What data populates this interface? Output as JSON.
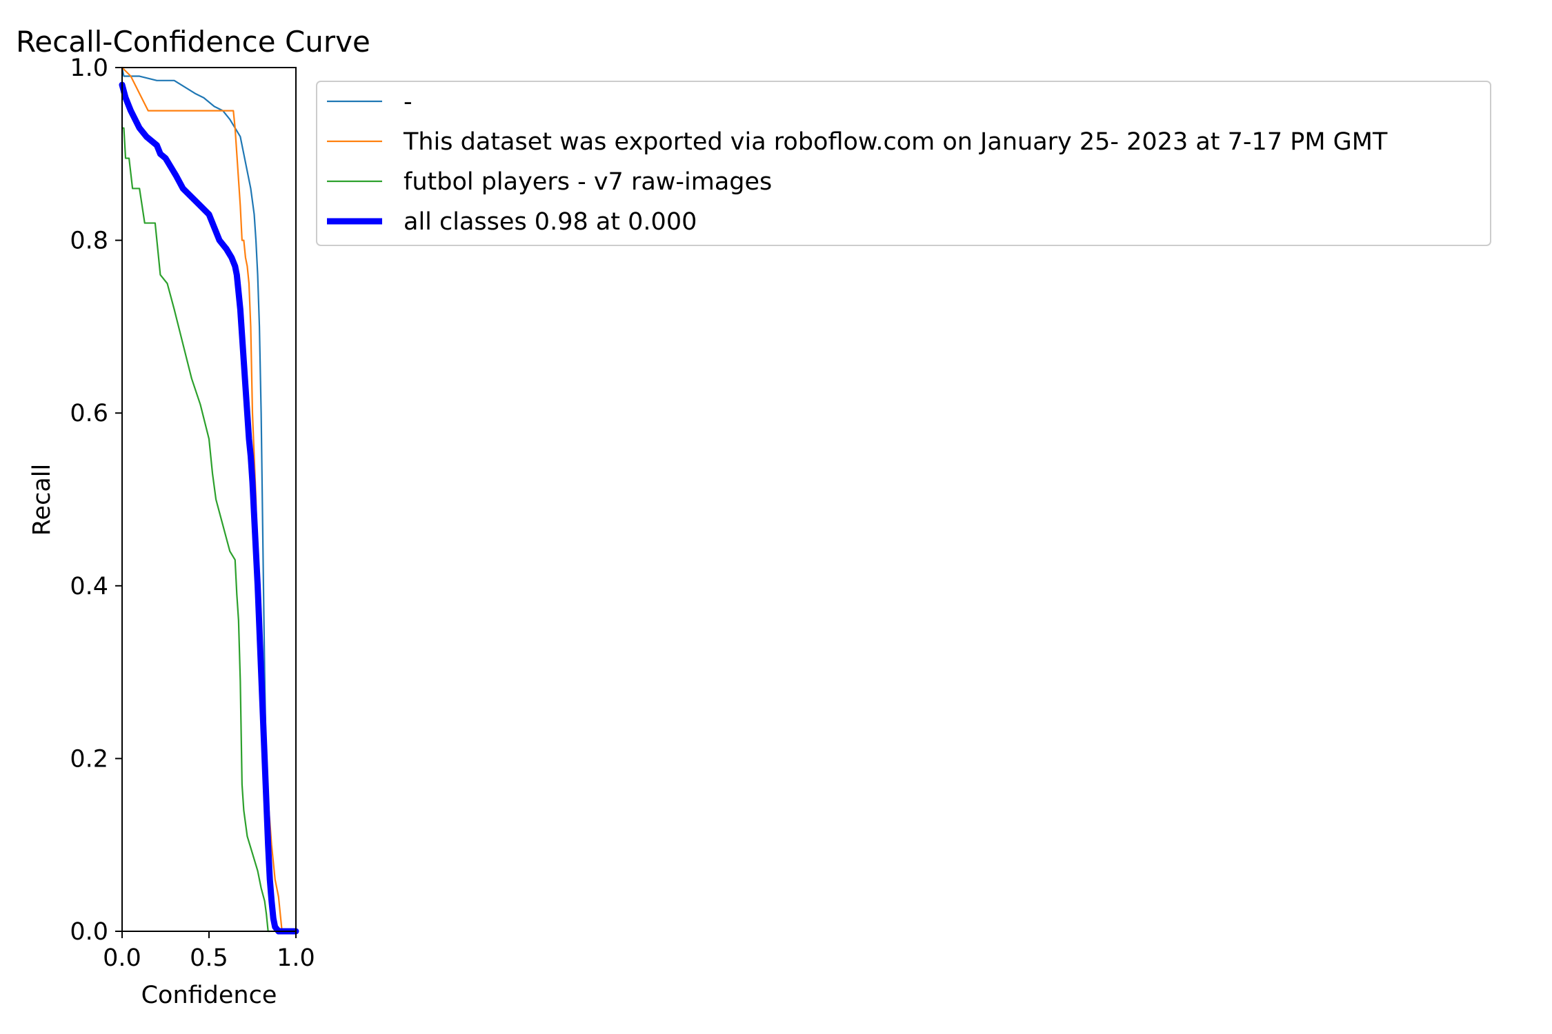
{
  "chart_data": {
    "type": "line",
    "title": "Recall-Confidence Curve",
    "xlabel": "Confidence",
    "ylabel": "Recall",
    "xlim": [
      0,
      1
    ],
    "ylim": [
      0,
      1
    ],
    "xticks": [
      0.0,
      0.5,
      1.0
    ],
    "xtick_labels": [
      "0.0",
      "0.5",
      "1.0"
    ],
    "yticks": [
      0.0,
      0.2,
      0.4,
      0.6,
      0.8,
      1.0
    ],
    "ytick_labels": [
      "0.0",
      "0.2",
      "0.4",
      "0.6",
      "0.8",
      "1.0"
    ],
    "grid": false,
    "legend_position": "outside-right-top",
    "series": [
      {
        "name": "-",
        "color": "#1f77b4",
        "width": "thin",
        "x": [
          0.0,
          0.01,
          0.05,
          0.1,
          0.2,
          0.3,
          0.38,
          0.42,
          0.47,
          0.5,
          0.53,
          0.58,
          0.62,
          0.65,
          0.68,
          0.7,
          0.72,
          0.74,
          0.76,
          0.77,
          0.78,
          0.79,
          0.8,
          0.81,
          0.82,
          0.83,
          0.84,
          0.85,
          0.86,
          0.87,
          0.88,
          0.9,
          0.92,
          0.95,
          1.0
        ],
        "y": [
          1.0,
          0.99,
          0.99,
          0.99,
          0.985,
          0.985,
          0.975,
          0.97,
          0.965,
          0.96,
          0.955,
          0.95,
          0.94,
          0.93,
          0.92,
          0.9,
          0.88,
          0.86,
          0.83,
          0.8,
          0.76,
          0.7,
          0.6,
          0.45,
          0.3,
          0.18,
          0.1,
          0.06,
          0.03,
          0.015,
          0.005,
          0.0,
          0.0,
          0.0,
          0.0
        ]
      },
      {
        "name": "This dataset was exported via roboflow.com on January 25- 2023 at 7-17 PM GMT",
        "color": "#ff7f0e",
        "width": "thin",
        "x": [
          0.0,
          0.05,
          0.1,
          0.15,
          0.2,
          0.3,
          0.4,
          0.5,
          0.6,
          0.64,
          0.65,
          0.66,
          0.67,
          0.68,
          0.69,
          0.7,
          0.71,
          0.72,
          0.73,
          0.74,
          0.75,
          0.76,
          0.77,
          0.78,
          0.8,
          0.83,
          0.86,
          0.88,
          0.9,
          0.91,
          0.92,
          0.95,
          1.0
        ],
        "y": [
          1.0,
          0.99,
          0.97,
          0.95,
          0.95,
          0.95,
          0.95,
          0.95,
          0.95,
          0.95,
          0.93,
          0.9,
          0.87,
          0.84,
          0.8,
          0.8,
          0.78,
          0.77,
          0.75,
          0.7,
          0.6,
          0.55,
          0.5,
          0.4,
          0.3,
          0.18,
          0.1,
          0.06,
          0.04,
          0.02,
          0.0,
          0.0,
          0.0
        ]
      },
      {
        "name": "futbol players - v7 raw-images",
        "color": "#2ca02c",
        "width": "thin",
        "x": [
          0.0,
          0.01,
          0.02,
          0.04,
          0.06,
          0.1,
          0.13,
          0.16,
          0.19,
          0.22,
          0.26,
          0.3,
          0.35,
          0.4,
          0.45,
          0.5,
          0.52,
          0.54,
          0.58,
          0.62,
          0.65,
          0.66,
          0.67,
          0.68,
          0.69,
          0.7,
          0.72,
          0.75,
          0.78,
          0.8,
          0.82,
          0.83,
          0.84,
          0.85
        ],
        "y": [
          0.93,
          0.93,
          0.895,
          0.895,
          0.86,
          0.86,
          0.82,
          0.82,
          0.82,
          0.76,
          0.75,
          0.72,
          0.68,
          0.64,
          0.61,
          0.57,
          0.53,
          0.5,
          0.47,
          0.44,
          0.43,
          0.39,
          0.36,
          0.29,
          0.17,
          0.14,
          0.11,
          0.09,
          0.07,
          0.05,
          0.035,
          0.02,
          0.0,
          0.0
        ]
      },
      {
        "name": "all classes 0.98 at 0.000",
        "color": "#0000ff",
        "width": "thick",
        "x": [
          0.0,
          0.02,
          0.05,
          0.1,
          0.14,
          0.17,
          0.2,
          0.22,
          0.25,
          0.28,
          0.31,
          0.35,
          0.4,
          0.45,
          0.5,
          0.53,
          0.56,
          0.6,
          0.63,
          0.65,
          0.66,
          0.67,
          0.68,
          0.69,
          0.7,
          0.71,
          0.72,
          0.73,
          0.74,
          0.75,
          0.76,
          0.77,
          0.78,
          0.79,
          0.8,
          0.81,
          0.82,
          0.83,
          0.84,
          0.85,
          0.86,
          0.87,
          0.88,
          0.9,
          0.92,
          0.95,
          1.0
        ],
        "y": [
          0.98,
          0.965,
          0.95,
          0.93,
          0.92,
          0.915,
          0.91,
          0.9,
          0.895,
          0.885,
          0.875,
          0.86,
          0.85,
          0.84,
          0.83,
          0.815,
          0.8,
          0.79,
          0.78,
          0.77,
          0.76,
          0.74,
          0.72,
          0.69,
          0.66,
          0.63,
          0.6,
          0.57,
          0.55,
          0.52,
          0.48,
          0.44,
          0.4,
          0.35,
          0.3,
          0.25,
          0.2,
          0.15,
          0.1,
          0.06,
          0.035,
          0.015,
          0.005,
          0.0,
          0.0,
          0.0,
          0.0
        ]
      }
    ]
  }
}
